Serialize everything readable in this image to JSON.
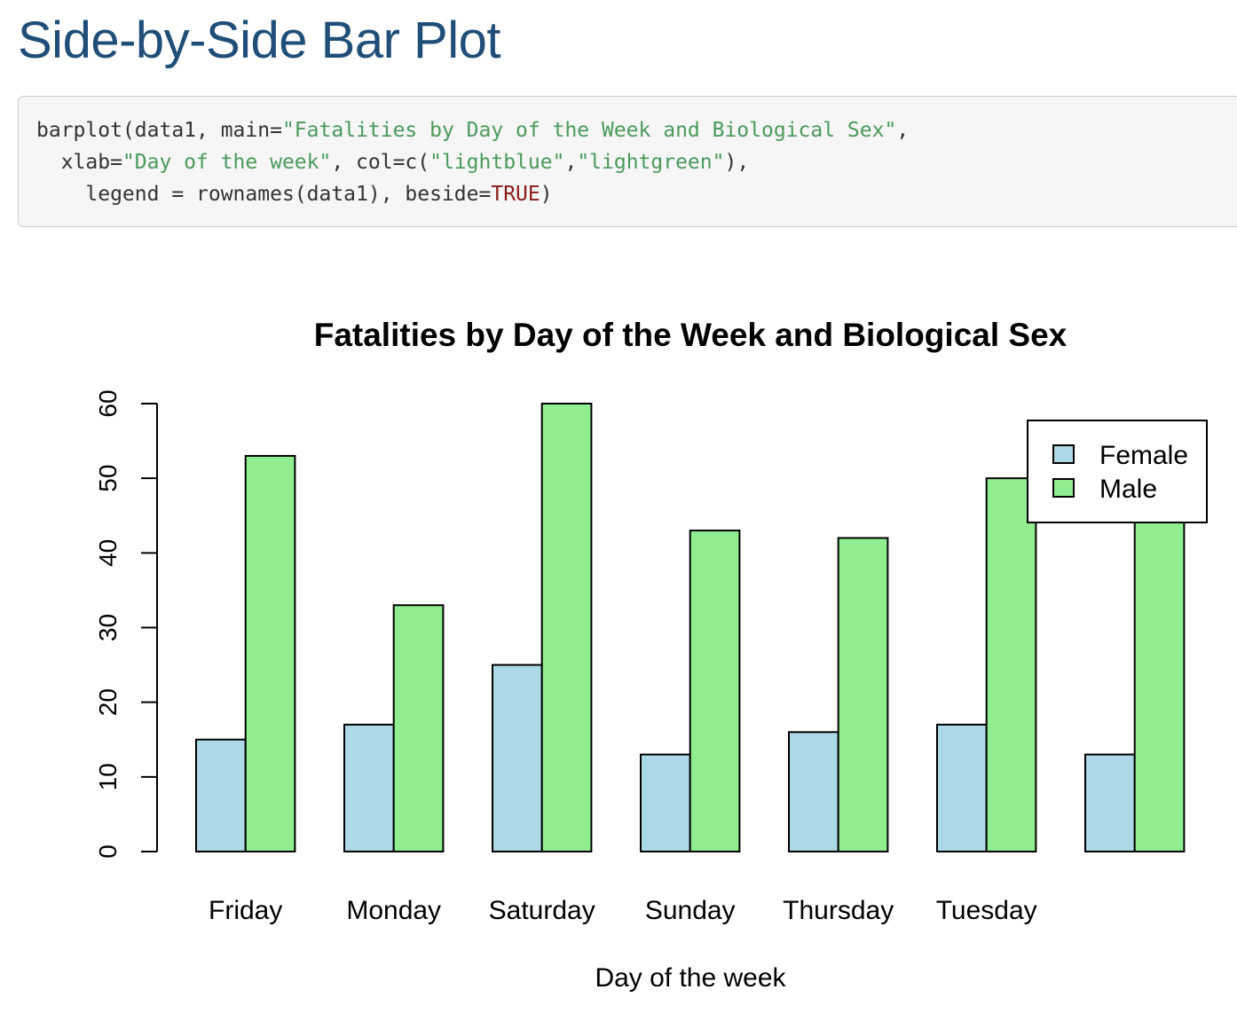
{
  "page": {
    "title": "Side-by-Side Bar Plot"
  },
  "code": {
    "lines": [
      [
        {
          "t": "barplot(data1, main=",
          "k": "plain"
        },
        {
          "t": "\"Fatalities by Day of the Week and Biological Sex\"",
          "k": "str"
        },
        {
          "t": ",",
          "k": "plain"
        }
      ],
      [
        {
          "t": "  xlab=",
          "k": "plain"
        },
        {
          "t": "\"Day of the week\"",
          "k": "str"
        },
        {
          "t": ", col=c(",
          "k": "plain"
        },
        {
          "t": "\"lightblue\"",
          "k": "str"
        },
        {
          "t": ",",
          "k": "plain"
        },
        {
          "t": "\"lightgreen\"",
          "k": "str"
        },
        {
          "t": "),",
          "k": "plain"
        }
      ],
      [
        {
          "t": "    legend = rownames(data1), beside=",
          "k": "plain"
        },
        {
          "t": "TRUE",
          "k": "kw"
        },
        {
          "t": ")",
          "k": "plain"
        }
      ]
    ]
  },
  "chart_data": {
    "type": "bar",
    "title": "Fatalities by Day of the Week and Biological Sex",
    "xlabel": "Day of the week",
    "ylabel": "",
    "categories": [
      "Friday",
      "Monday",
      "Saturday",
      "Sunday",
      "Thursday",
      "Tuesday",
      "Wednesday"
    ],
    "category_labels_shown": [
      "Friday",
      "Monday",
      "Saturday",
      "Sunday",
      "Thursday",
      "Tuesday",
      ""
    ],
    "series": [
      {
        "name": "Female",
        "color": "#add8e6",
        "values": [
          15,
          17,
          25,
          13,
          16,
          17,
          13
        ]
      },
      {
        "name": "Male",
        "color": "#90ee90",
        "values": [
          53,
          33,
          60,
          43,
          42,
          50,
          47
        ]
      }
    ],
    "ylim": [
      0,
      60
    ],
    "yticks": [
      0,
      10,
      20,
      30,
      40,
      50,
      60
    ],
    "legend_position": "top-right",
    "grid": false,
    "layout": "grouped"
  }
}
